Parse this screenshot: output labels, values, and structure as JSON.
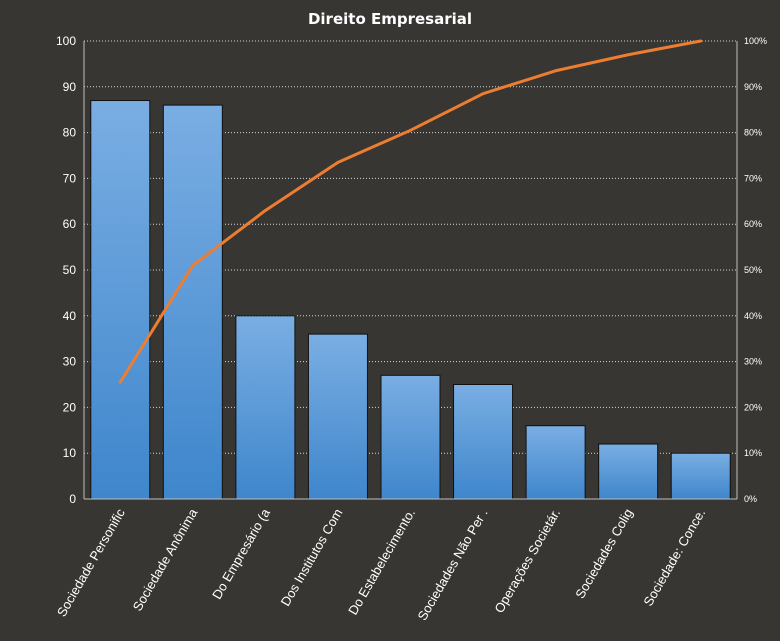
{
  "chart_data": {
    "type": "bar",
    "title": "Direito  Empresarial",
    "categories": [
      "Sociedade Personific",
      "Sociedade Anônima",
      "Do Empresário (a",
      "Dos Institutos Com",
      "Do Estabelecimento.",
      "Sociedades Não Per .",
      "Operações Societár.",
      "Sociedades Colig",
      "Sociedade: Conce."
    ],
    "series": [
      {
        "type": "bar",
        "values": [
          87,
          86,
          40,
          36,
          27,
          25,
          16,
          12,
          10
        ]
      },
      {
        "type": "line",
        "axis": "secondary",
        "values": [
          25.5,
          51,
          63,
          73.5,
          80.5,
          88.5,
          93.5,
          97,
          100
        ]
      }
    ],
    "ylim": [
      0,
      100
    ],
    "yticks": [
      "0",
      "10",
      "20",
      "30",
      "40",
      "50",
      "60",
      "70",
      "80",
      "90",
      "100"
    ],
    "y2lim": [
      0,
      100
    ],
    "y2ticks": [
      "0%",
      "10%",
      "20%",
      "30%",
      "40%",
      "50%",
      "60%",
      "70%",
      "80%",
      "90%",
      "100%"
    ],
    "grid": true,
    "colors": {
      "background": "#383633",
      "bar_top": "#7aaee3",
      "bar_bottom": "#3f86cc",
      "bar_edge": "#111111",
      "line": "#ed7d31",
      "text": "#ffffff"
    }
  }
}
